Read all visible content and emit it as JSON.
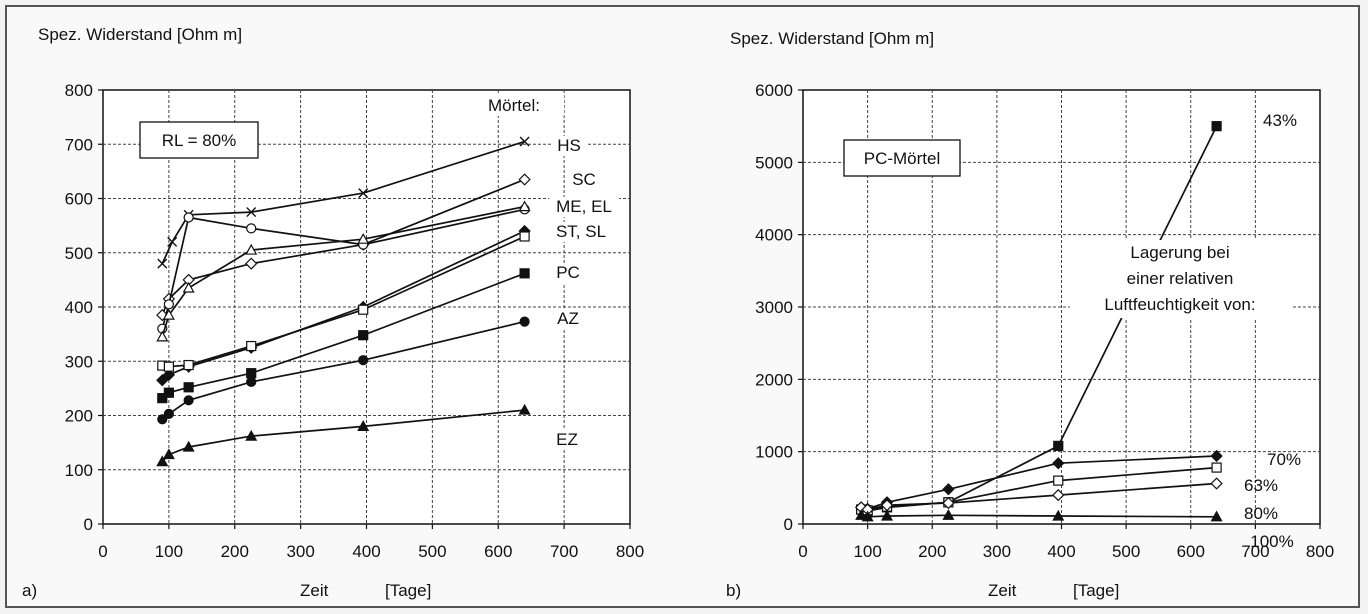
{
  "chart_data": [
    {
      "panel_label": "a)",
      "type": "line",
      "title": "Spez. Widerstand [Ohm m]",
      "xlabel": "Zeit",
      "xunit": "[Tage]",
      "xlim": [
        0,
        800
      ],
      "ylim": [
        0,
        800
      ],
      "xticks": [
        "0",
        "100",
        "200",
        "300",
        "400",
        "500",
        "600",
        "700",
        "800"
      ],
      "yticks": [
        "0",
        "100",
        "200",
        "300",
        "400",
        "500",
        "600",
        "700",
        "800"
      ],
      "grid": true,
      "box_label": "RL = 80%",
      "legend_title": "Mörtel:",
      "series": [
        {
          "name": "HS",
          "marker": "x",
          "x": [
            90,
            105,
            130,
            225,
            395,
            640
          ],
          "y": [
            480,
            520,
            570,
            575,
            610,
            705
          ]
        },
        {
          "name": "SC",
          "marker": "diamond-open",
          "x": [
            90,
            100,
            130,
            225,
            395,
            640
          ],
          "y": [
            385,
            415,
            450,
            480,
            515,
            635
          ]
        },
        {
          "name": "ME, EL",
          "marker": "circle-open",
          "x": [
            90,
            100,
            130,
            225,
            395,
            640
          ],
          "y": [
            360,
            405,
            565,
            545,
            515,
            580
          ]
        },
        {
          "name": "ST, SL",
          "marker": "triangle-open",
          "x": [
            90,
            100,
            130,
            225,
            395,
            640
          ],
          "y": [
            345,
            385,
            435,
            505,
            525,
            585
          ]
        },
        {
          "name": "ST, SL (diamond)",
          "marker": "diamond",
          "x": [
            90,
            100,
            130,
            225,
            395,
            640
          ],
          "y": [
            265,
            275,
            290,
            325,
            400,
            540
          ]
        },
        {
          "name": "PC (square-open)",
          "marker": "square-open",
          "x": [
            90,
            100,
            130,
            225,
            395,
            640
          ],
          "y": [
            292,
            290,
            293,
            328,
            395,
            530
          ]
        },
        {
          "name": "PC",
          "marker": "square",
          "x": [
            90,
            100,
            130,
            225,
            395,
            640
          ],
          "y": [
            232,
            242,
            252,
            278,
            348,
            462
          ]
        },
        {
          "name": "AZ",
          "marker": "circle",
          "x": [
            90,
            100,
            130,
            225,
            395,
            640
          ],
          "y": [
            193,
            203,
            228,
            262,
            302,
            373
          ]
        },
        {
          "name": "EZ",
          "marker": "triangle",
          "x": [
            90,
            100,
            130,
            225,
            395,
            640
          ],
          "y": [
            115,
            128,
            142,
            162,
            180,
            210
          ]
        }
      ],
      "right_labels": [
        "HS",
        "SC",
        "ME, EL",
        "ST, SL",
        "PC",
        "AZ",
        "EZ"
      ]
    },
    {
      "panel_label": "b)",
      "type": "line",
      "title": "Spez. Widerstand [Ohm m]",
      "xlabel": "Zeit",
      "xunit": "[Tage]",
      "xlim": [
        0,
        800
      ],
      "ylim": [
        0,
        6000
      ],
      "xticks": [
        "0",
        "100",
        "200",
        "300",
        "400",
        "500",
        "600",
        "700",
        "800"
      ],
      "yticks": [
        "0",
        "1000",
        "2000",
        "3000",
        "4000",
        "5000",
        "6000"
      ],
      "grid": true,
      "box_label": "PC-Mörtel",
      "annotation": [
        "Lagerung bei",
        "einer relativen",
        "Luftfeuchtigkeit von:"
      ],
      "series": [
        {
          "name": "43%",
          "marker": "square",
          "x": [
            90,
            100,
            130,
            225,
            395,
            640
          ],
          "y": [
            200,
            180,
            230,
            300,
            1080,
            5500
          ]
        },
        {
          "name": "70%",
          "marker": "diamond",
          "x": [
            90,
            100,
            130,
            225,
            395,
            640
          ],
          "y": [
            230,
            210,
            300,
            480,
            840,
            940
          ]
        },
        {
          "name": "63%",
          "marker": "square-open",
          "x": [
            90,
            100,
            130,
            225,
            395,
            640
          ],
          "y": [
            200,
            190,
            240,
            300,
            600,
            780
          ]
        },
        {
          "name": "80%",
          "marker": "diamond-open",
          "x": [
            90,
            100,
            130,
            225,
            395,
            640
          ],
          "y": [
            230,
            200,
            260,
            290,
            400,
            560
          ]
        },
        {
          "name": "100%",
          "marker": "triangle",
          "x": [
            90,
            100,
            130,
            225,
            395,
            640
          ],
          "y": [
            120,
            100,
            110,
            120,
            110,
            100
          ]
        }
      ],
      "right_labels": [
        "43%",
        "70%",
        "63%",
        "80%",
        "100%"
      ]
    }
  ]
}
